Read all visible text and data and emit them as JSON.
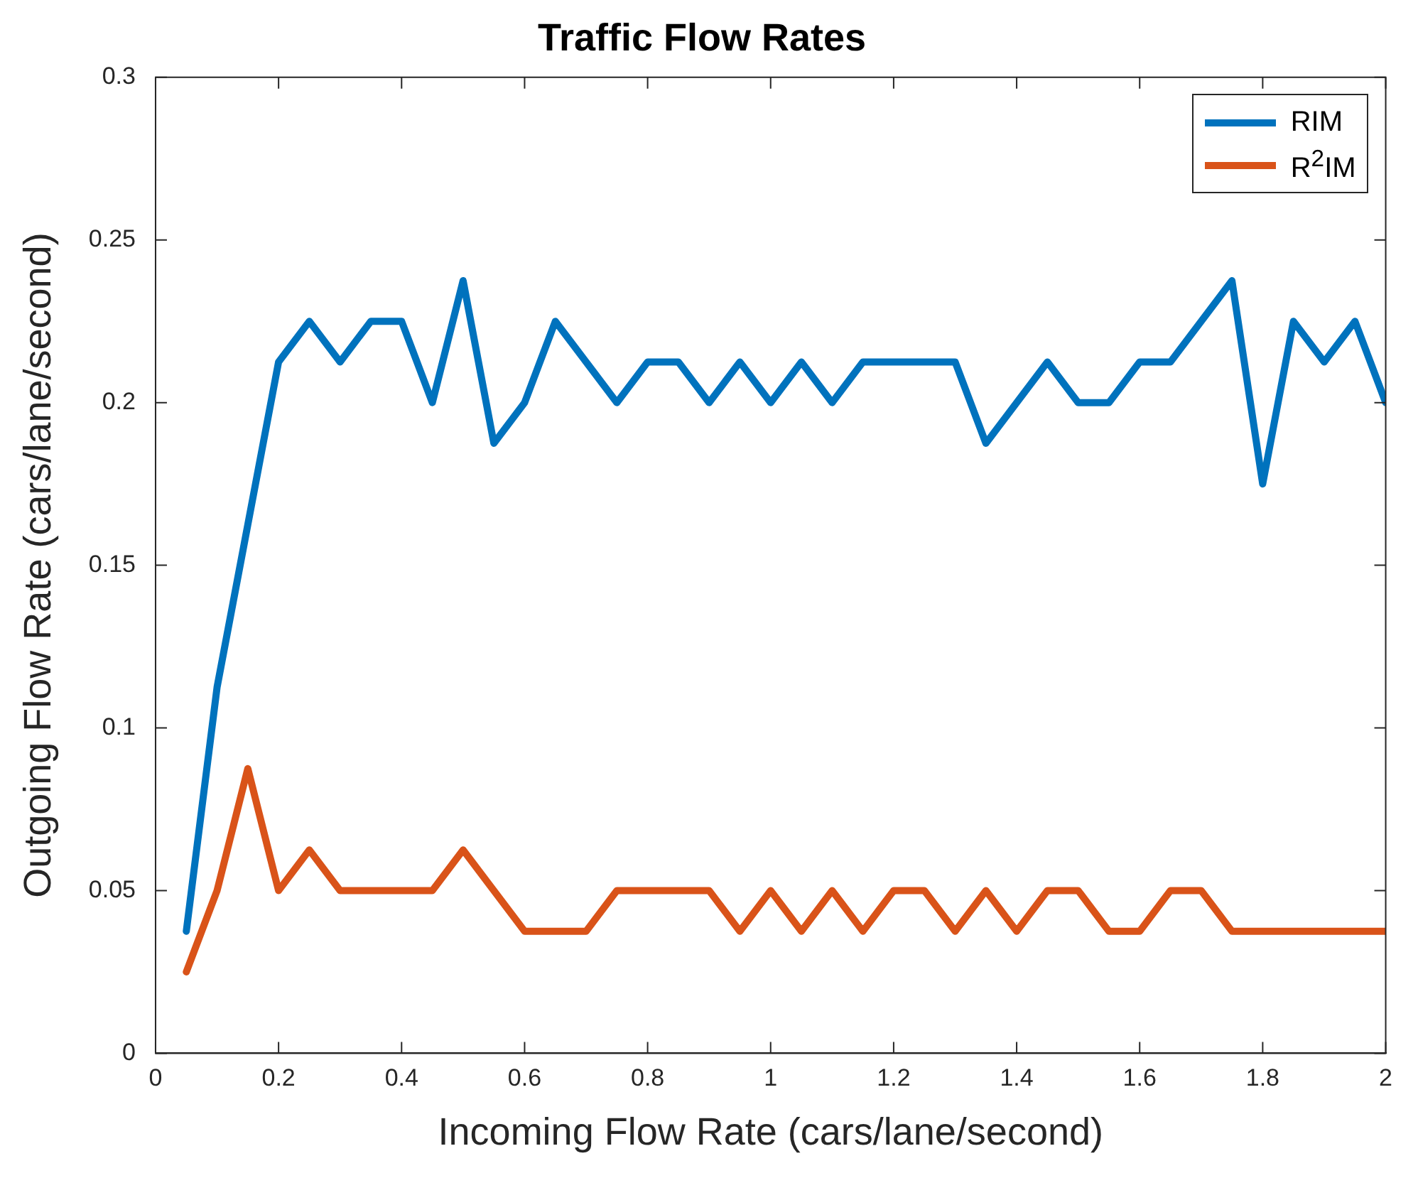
{
  "chart_data": {
    "type": "line",
    "title": "Traffic Flow Rates",
    "xlabel": "Incoming Flow Rate (cars/lane/second)",
    "ylabel": "Outgoing Flow Rate (cars/lane/second)",
    "x": [
      0.05,
      0.1,
      0.15,
      0.2,
      0.25,
      0.3,
      0.35,
      0.4,
      0.45,
      0.5,
      0.55,
      0.6,
      0.65,
      0.7,
      0.75,
      0.8,
      0.85,
      0.9,
      0.95,
      1,
      1.05,
      1.1,
      1.15,
      1.2,
      1.25,
      1.3,
      1.35,
      1.4,
      1.45,
      1.5,
      1.55,
      1.6,
      1.65,
      1.7,
      1.75,
      1.8,
      1.85,
      1.9,
      1.95,
      2
    ],
    "series": [
      {
        "name": "RIM",
        "color": "#0072bd",
        "values": [
          0.0375,
          0.1125,
          0.1625,
          0.2125,
          0.225,
          0.2125,
          0.225,
          0.225,
          0.2,
          0.2375,
          0.1875,
          0.2,
          0.225,
          0.2125,
          0.2,
          0.2125,
          0.2125,
          0.2,
          0.2125,
          0.2,
          0.2125,
          0.2,
          0.2125,
          0.2125,
          0.2125,
          0.2125,
          0.1875,
          0.2,
          0.2125,
          0.2,
          0.2,
          0.2125,
          0.2125,
          0.225,
          0.2375,
          0.175,
          0.225,
          0.2125,
          0.225,
          0.2
        ]
      },
      {
        "name": "R$^{2}$IM",
        "color": "#d95319",
        "values": [
          0.025,
          0.05,
          0.0875,
          0.05,
          0.0625,
          0.05,
          0.05,
          0.05,
          0.05,
          0.0625,
          0.05,
          0.0375,
          0.0375,
          0.0375,
          0.05,
          0.05,
          0.05,
          0.05,
          0.0375,
          0.05,
          0.0375,
          0.05,
          0.0375,
          0.05,
          0.05,
          0.0375,
          0.05,
          0.0375,
          0.05,
          0.05,
          0.0375,
          0.0375,
          0.05,
          0.05,
          0.0375,
          0.0375,
          0.0375,
          0.0375,
          0.0375,
          0.0375
        ]
      }
    ],
    "xlim": [
      0,
      2
    ],
    "xticks": [
      0,
      0.2,
      0.4,
      0.6,
      0.8,
      1,
      1.2,
      1.4,
      1.6,
      1.8,
      2
    ],
    "ylim": [
      0,
      0.3
    ],
    "yticks": [
      0,
      0.05,
      0.1,
      0.15,
      0.2,
      0.25,
      0.3
    ],
    "legend": "top right",
    "marker": "none",
    "line_style": "solid",
    "grid": false
  }
}
